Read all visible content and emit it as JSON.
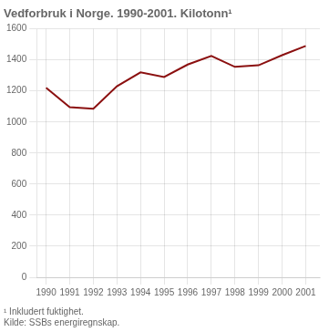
{
  "chart_data": {
    "type": "line",
    "title": "Vedforbruk i Norge. 1990-2001. Kilotonn¹",
    "x": [
      1990,
      1991,
      1992,
      1993,
      1994,
      1995,
      1996,
      1997,
      1998,
      1999,
      2000,
      2001
    ],
    "values": [
      1220,
      1095,
      1085,
      1230,
      1320,
      1290,
      1370,
      1425,
      1355,
      1365,
      1430,
      1490
    ],
    "color": "#8B1010",
    "xlim": [
      1989.6,
      2001.6
    ],
    "xticks": [
      1990,
      1991,
      1992,
      1993,
      1994,
      1995,
      1996,
      1997,
      1998,
      1999,
      2000,
      2001
    ],
    "ylim": [
      0,
      1600
    ],
    "yticks": [
      0,
      200,
      400,
      600,
      800,
      1000,
      1200,
      1400,
      1600
    ],
    "grid": true,
    "annotations": [
      "¹ Inkludert fuktighet.",
      "Kilde: SSBs energiregnskap."
    ]
  }
}
